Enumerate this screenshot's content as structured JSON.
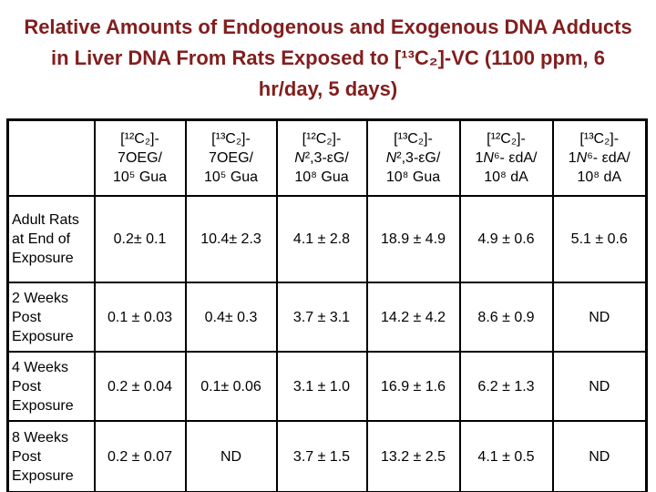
{
  "title": {
    "color": "#821E1E",
    "lines": [
      "Relative Amounts of Endogenous and Exogenous DNA Adducts",
      "in Liver DNA From Rats Exposed to [¹³C₂]-VC (1100 ppm, 6",
      "hr/day, 5 days)"
    ]
  },
  "table": {
    "corner_label": "",
    "columns": [
      {
        "lines": [
          "[¹²C₂]-",
          "7OEG/",
          "10⁵ Gua"
        ]
      },
      {
        "lines": [
          "[¹³C₂]-",
          "7OEG/",
          "10⁵ Gua"
        ]
      },
      {
        "lines": [
          "[¹²C₂]-",
          "*N*²,3-εG/",
          "10⁸ Gua"
        ]
      },
      {
        "lines": [
          "[¹³C₂]-",
          "*N*²,3-εG/",
          "10⁸ Gua"
        ]
      },
      {
        "lines": [
          "[¹²C₂]-",
          "1*N*⁶- εdA/",
          "10⁸ dA"
        ]
      },
      {
        "lines": [
          "[¹³C₂]-",
          "1*N*⁶- εdA/",
          "10⁸ dA"
        ]
      }
    ],
    "rows": [
      {
        "label": "Adult Rats at End of Exposure",
        "values": [
          "0.2± 0.1",
          "10.4± 2.3",
          "4.1 ± 2.8",
          "18.9 ± 4.9",
          "4.9 ± 0.6",
          "5.1 ± 0.6"
        ]
      },
      {
        "label": "2 Weeks Post Exposure",
        "values": [
          "0.1 ± 0.03",
          "0.4± 0.3",
          "3.7 ± 3.1",
          "14.2 ± 4.2",
          "8.6 ± 0.9",
          "ND"
        ]
      },
      {
        "label": "4 Weeks Post Exposure",
        "values": [
          "0.2 ± 0.04",
          "0.1± 0.06",
          "3.1 ± 1.0",
          "16.9 ± 1.6",
          "6.2 ± 1.3",
          "ND"
        ]
      },
      {
        "label": "8 Weeks Post Exposure",
        "values": [
          "0.2 ± 0.07",
          "ND",
          "3.7 ± 1.5",
          "13.2 ± 2.5",
          "4.1 ± 0.5",
          "ND"
        ]
      }
    ]
  }
}
